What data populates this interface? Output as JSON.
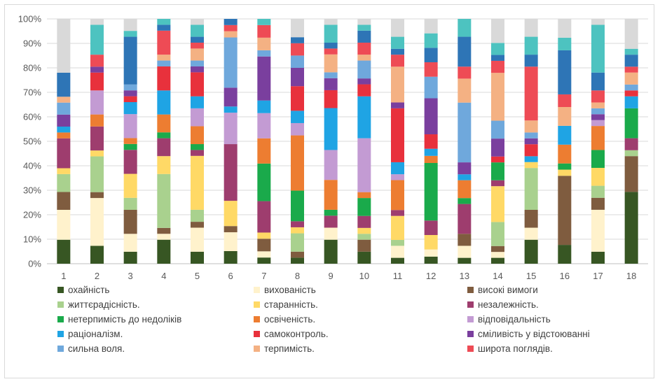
{
  "chart_data": {
    "type": "bar",
    "stacked": true,
    "percent_stacked": true,
    "categories": [
      "1",
      "2",
      "3",
      "4",
      "5",
      "6",
      "7",
      "8",
      "9",
      "10",
      "11",
      "12",
      "13",
      "14",
      "15",
      "16",
      "17",
      "18"
    ],
    "ylim": [
      0,
      100
    ],
    "yticks": [
      "0%",
      "10%",
      "20%",
      "30%",
      "40%",
      "50%",
      "60%",
      "70%",
      "80%",
      "90%",
      "100%"
    ],
    "grid": true,
    "legend_position": "bottom",
    "series": [
      {
        "name": "охайність",
        "color": "#375623",
        "values": [
          9.8,
          7.3,
          4.9,
          9.8,
          4.9,
          4.9,
          2.4,
          2.4,
          9.8,
          4.9,
          2.4,
          2.9,
          2.4,
          2.4,
          9.8,
          7.3,
          4.9,
          29.3
        ]
      },
      {
        "name": "вихованість",
        "color": "#fff2cc",
        "values": [
          12.2,
          19.5,
          7.3,
          2.4,
          9.8,
          7.3,
          2.4,
          0,
          4.9,
          0,
          4.9,
          2.9,
          4.9,
          2.4,
          4.9,
          0,
          17.1,
          0
        ]
      },
      {
        "name": "високі вимоги",
        "color": "#7f5c3f",
        "values": [
          7.3,
          2.4,
          9.8,
          2.4,
          2.4,
          2.4,
          4.9,
          2.4,
          0,
          4.9,
          0,
          0,
          4.9,
          2.4,
          7.3,
          26.8,
          4.9,
          14.6
        ]
      },
      {
        "name": "життєрадісність.",
        "color": "#a9d18e",
        "values": [
          7.3,
          14.6,
          4.9,
          22.0,
          4.9,
          0,
          0,
          7.3,
          0,
          2.4,
          2.4,
          0,
          0,
          9.8,
          17.1,
          0,
          4.9,
          2.4
        ]
      },
      {
        "name": "старанність.",
        "color": "#ffd966",
        "values": [
          2.4,
          2.4,
          9.8,
          7.3,
          22.0,
          9.8,
          2.4,
          2.4,
          0,
          2.4,
          9.8,
          5.9,
          0,
          14.6,
          2.4,
          2.4,
          7.3,
          0
        ]
      },
      {
        "name": "незалежність.",
        "color": "#9e3d6e",
        "values": [
          12.2,
          9.8,
          9.8,
          7.3,
          2.4,
          22.0,
          12.2,
          2.4,
          4.9,
          4.9,
          2.4,
          5.9,
          12.2,
          2.4,
          0,
          0,
          0,
          4.9
        ]
      },
      {
        "name": "нетерпимість до недоліків",
        "color": "#1aaa4b",
        "values": [
          0,
          0,
          2.4,
          2.4,
          2.4,
          0,
          14.6,
          12.2,
          2.4,
          7.3,
          0,
          23.5,
          2.4,
          7.3,
          0,
          2.4,
          7.3,
          12.2
        ]
      },
      {
        "name": "освіченість.",
        "color": "#ed7d31",
        "values": [
          2.4,
          4.9,
          2.4,
          7.3,
          7.3,
          0,
          9.8,
          22.0,
          12.2,
          2.4,
          12.2,
          2.9,
          7.3,
          0,
          0,
          7.3,
          9.8,
          0
        ]
      },
      {
        "name": "відповідальність",
        "color": "#c39bd3",
        "values": [
          0,
          9.8,
          9.8,
          0,
          7.3,
          12.2,
          9.8,
          4.9,
          12.2,
          22.0,
          2.4,
          0,
          0,
          0,
          0,
          0,
          2.4,
          0
        ]
      },
      {
        "name": "раціоналізм.",
        "color": "#1fa4e4",
        "values": [
          2.4,
          0,
          4.9,
          9.8,
          4.9,
          2.4,
          4.9,
          4.9,
          17.1,
          17.1,
          4.9,
          2.9,
          2.4,
          0,
          2.4,
          7.3,
          0,
          4.9
        ]
      },
      {
        "name": "самоконтроль.",
        "color": "#e8313c",
        "values": [
          0,
          7.3,
          2.4,
          9.8,
          9.8,
          0,
          0,
          9.8,
          7.3,
          4.9,
          22.0,
          5.9,
          0,
          2.4,
          4.9,
          0,
          0,
          2.4
        ]
      },
      {
        "name": "сміливість у відстоюванні",
        "color": "#7a3f9e",
        "values": [
          4.9,
          2.4,
          2.4,
          0,
          2.4,
          7.3,
          17.1,
          7.3,
          4.9,
          2.4,
          2.4,
          14.7,
          4.9,
          7.3,
          2.4,
          0,
          2.4,
          0
        ]
      },
      {
        "name": "сильна воля.",
        "color": "#6fa8dc",
        "values": [
          4.9,
          0,
          2.4,
          2.4,
          2.4,
          19.5,
          2.4,
          4.9,
          2.4,
          7.3,
          0,
          8.8,
          24.4,
          7.3,
          2.4,
          0,
          2.4,
          2.4
        ]
      },
      {
        "name": "терпимість.",
        "color": "#f4b183",
        "values": [
          2.4,
          0,
          0,
          2.4,
          4.9,
          2.4,
          4.9,
          0,
          7.3,
          2.4,
          14.6,
          0,
          9.8,
          19.5,
          4.9,
          7.3,
          2.4,
          4.9
        ]
      },
      {
        "name": "широта поглядів.",
        "color": "#ee4b55",
        "values": [
          0,
          4.9,
          0,
          9.8,
          2.4,
          2.4,
          4.9,
          4.9,
          2.4,
          4.9,
          4.9,
          5.9,
          4.9,
          4.9,
          22.0,
          4.9,
          4.9,
          2.4
        ]
      },
      {
        "name": "",
        "color": "#2e75b6",
        "values": [
          9.8,
          0,
          19.5,
          2.4,
          2.4,
          2.4,
          0,
          2.4,
          2.4,
          4.9,
          2.4,
          5.9,
          12.2,
          2.4,
          4.9,
          17.1,
          7.3,
          4.9
        ]
      },
      {
        "name": "",
        "color": "#4dc3c0",
        "values": [
          0,
          12.2,
          2.4,
          2.4,
          4.9,
          0,
          2.4,
          0,
          7.3,
          2.4,
          4.9,
          5.9,
          7.3,
          4.9,
          7.3,
          4.9,
          19.5,
          2.4
        ]
      },
      {
        "name": "",
        "color": "#d9d9d9",
        "values": [
          22.0,
          2.4,
          4.9,
          0,
          2.4,
          0,
          0,
          7.3,
          2.4,
          2.4,
          7.3,
          5.9,
          0,
          9.8,
          7.3,
          7.3,
          2.4,
          12.2
        ]
      }
    ]
  }
}
